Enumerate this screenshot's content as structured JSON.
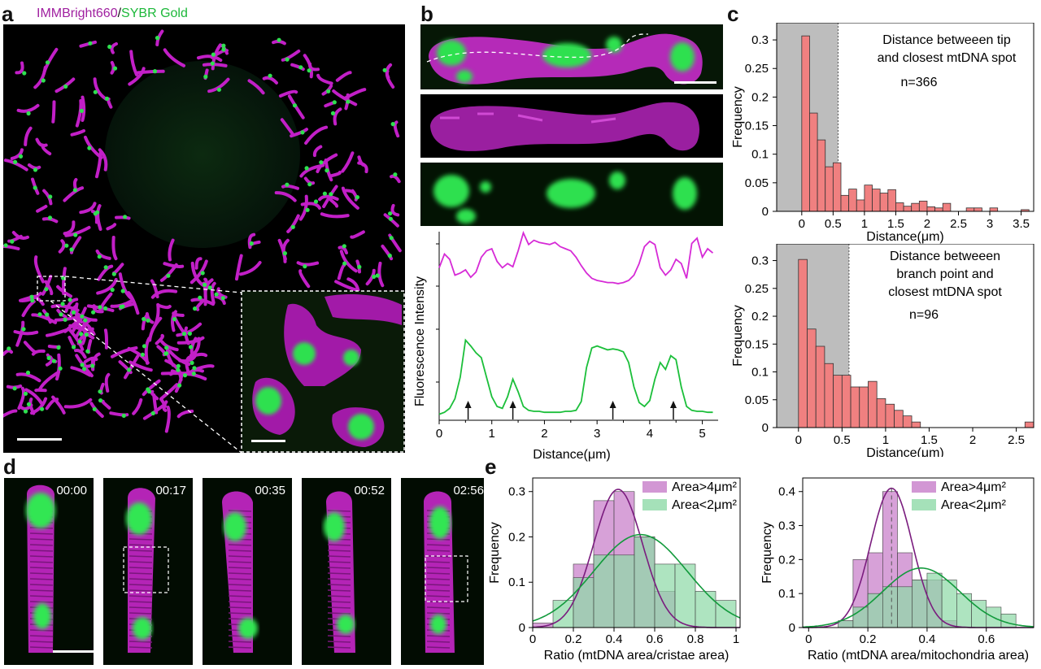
{
  "figure": {
    "panel_labels": {
      "a": "a",
      "b": "b",
      "c": "c",
      "d": "d",
      "e": "e"
    },
    "colors": {
      "magenta": "#d62ad6",
      "green": "#1bbf3a",
      "hist_red": "#f08080",
      "shade_gray": "#bdbdbd",
      "purple_fill": "#c77dc9",
      "green_fill": "#8fd9a8",
      "purple_line": "#7a1c7e",
      "green_line": "#129a3c"
    }
  },
  "panel_a": {
    "title_magenta": "IMMBright660",
    "title_sep": "/",
    "title_green": "SYBR Gold"
  },
  "panel_b": {
    "y_label": "Fluorescence Intensity",
    "x_label": "Distance(μm)"
  },
  "panel_d": {
    "timestamps": [
      "00:00",
      "00:17",
      "00:35",
      "00:52",
      "02:56"
    ]
  },
  "chart_data": [
    {
      "id": "b-profile",
      "type": "line",
      "title": "",
      "xlabel": "Distance(μm)",
      "ylabel": "Fluorescence Intensity",
      "xlim": [
        0,
        5.3
      ],
      "xticks": [
        "0",
        "1",
        "2",
        "3",
        "4",
        "5"
      ],
      "arrows_at": [
        0.55,
        1.4,
        3.3,
        4.45
      ],
      "series": [
        {
          "name": "magenta",
          "x": [
            0,
            0.1,
            0.2,
            0.3,
            0.4,
            0.5,
            0.6,
            0.7,
            0.8,
            0.9,
            1.0,
            1.1,
            1.2,
            1.3,
            1.4,
            1.5,
            1.6,
            1.7,
            1.8,
            1.9,
            2.0,
            2.1,
            2.2,
            2.3,
            2.4,
            2.5,
            2.6,
            2.7,
            2.8,
            2.9,
            3.0,
            3.1,
            3.2,
            3.3,
            3.4,
            3.5,
            3.6,
            3.7,
            3.8,
            3.9,
            4.0,
            4.1,
            4.2,
            4.3,
            4.4,
            4.5,
            4.6,
            4.7,
            4.8,
            4.9,
            5.0,
            5.1,
            5.2
          ],
          "y": [
            0.62,
            0.75,
            0.7,
            0.55,
            0.57,
            0.6,
            0.53,
            0.58,
            0.72,
            0.78,
            0.8,
            0.68,
            0.62,
            0.66,
            0.63,
            0.78,
            0.95,
            0.84,
            0.88,
            0.86,
            0.85,
            0.84,
            0.86,
            0.82,
            0.8,
            0.78,
            0.72,
            0.64,
            0.57,
            0.52,
            0.5,
            0.49,
            0.48,
            0.48,
            0.47,
            0.48,
            0.5,
            0.55,
            0.66,
            0.82,
            0.87,
            0.84,
            0.62,
            0.55,
            0.6,
            0.7,
            0.66,
            0.52,
            0.85,
            0.9,
            0.72,
            0.8,
            0.76
          ]
        },
        {
          "name": "green",
          "x": [
            0,
            0.1,
            0.2,
            0.3,
            0.4,
            0.5,
            0.6,
            0.7,
            0.8,
            0.9,
            1.0,
            1.1,
            1.2,
            1.3,
            1.4,
            1.5,
            1.6,
            1.7,
            1.8,
            1.9,
            2.0,
            2.1,
            2.2,
            2.3,
            2.4,
            2.5,
            2.6,
            2.7,
            2.8,
            2.9,
            3.0,
            3.1,
            3.2,
            3.3,
            3.4,
            3.5,
            3.6,
            3.7,
            3.8,
            3.9,
            4.0,
            4.1,
            4.2,
            4.3,
            4.4,
            4.5,
            4.6,
            4.7,
            4.8,
            4.9,
            5.0,
            5.1,
            5.2
          ],
          "y": [
            0.02,
            0.04,
            0.08,
            0.18,
            0.4,
            0.78,
            0.72,
            0.65,
            0.6,
            0.4,
            0.2,
            0.1,
            0.08,
            0.2,
            0.38,
            0.25,
            0.1,
            0.06,
            0.05,
            0.05,
            0.04,
            0.04,
            0.04,
            0.04,
            0.05,
            0.05,
            0.06,
            0.15,
            0.5,
            0.7,
            0.72,
            0.7,
            0.68,
            0.69,
            0.68,
            0.66,
            0.55,
            0.3,
            0.14,
            0.1,
            0.16,
            0.38,
            0.55,
            0.48,
            0.62,
            0.58,
            0.3,
            0.1,
            0.06,
            0.05,
            0.05,
            0.04,
            0.04
          ]
        }
      ]
    },
    {
      "id": "c-top",
      "type": "bar",
      "title": "",
      "annotation_lines": [
        "Distance betweeen tip",
        "and closest mtDNA spot"
      ],
      "n_label": "n=366",
      "xlabel": "Distance(μm)",
      "ylabel": "Frequency",
      "xlim": [
        -0.4,
        3.7
      ],
      "ylim": [
        0,
        0.33
      ],
      "xticks": [
        "0",
        "0.5",
        "1",
        "1.5",
        "2",
        "2.5",
        "3",
        "3.5"
      ],
      "yticks": [
        "0",
        "0.05",
        "0.1",
        "0.15",
        "0.2",
        "0.25",
        "0.3"
      ],
      "shaded_range": [
        -0.4,
        0.58
      ],
      "bin_width": 0.125,
      "bin_starts": [
        0,
        0.125,
        0.25,
        0.375,
        0.5,
        0.625,
        0.75,
        0.875,
        1.0,
        1.125,
        1.25,
        1.375,
        1.5,
        1.625,
        1.75,
        1.875,
        2.0,
        2.125,
        2.25,
        2.375,
        2.5,
        2.625,
        2.75,
        2.875,
        3.0,
        3.125,
        3.25,
        3.375,
        3.5
      ],
      "values": [
        0.307,
        0.172,
        0.125,
        0.078,
        0.085,
        0.028,
        0.039,
        0.02,
        0.046,
        0.039,
        0.032,
        0.038,
        0.015,
        0.009,
        0.014,
        0.018,
        0.008,
        0.006,
        0.014,
        0.0,
        0.0,
        0.006,
        0.006,
        0.0,
        0.006,
        0.0,
        0.0,
        0.0,
        0.003
      ]
    },
    {
      "id": "c-bottom",
      "type": "bar",
      "title": "",
      "annotation_lines": [
        "Distance betweeen",
        "branch point and",
        "closest mtDNA spot"
      ],
      "n_label": "n=96",
      "xlabel": "Distance(μm)",
      "ylabel": "Frequency",
      "xlim": [
        -0.25,
        2.7
      ],
      "ylim": [
        0,
        0.33
      ],
      "xticks": [
        "0",
        "0.5",
        "1",
        "1.5",
        "2",
        "2.5"
      ],
      "yticks": [
        "0",
        "0.05",
        "0.1",
        "0.15",
        "0.2",
        "0.25",
        "0.3"
      ],
      "shaded_range": [
        -0.25,
        0.58
      ],
      "bin_width": 0.1,
      "bin_starts": [
        0,
        0.1,
        0.2,
        0.3,
        0.4,
        0.5,
        0.6,
        0.7,
        0.8,
        0.9,
        1.0,
        1.1,
        1.2,
        1.3,
        1.4,
        1.5,
        1.6,
        1.7,
        1.8,
        1.9,
        2.0,
        2.1,
        2.2,
        2.3,
        2.4,
        2.5,
        2.6
      ],
      "values": [
        0.302,
        0.177,
        0.146,
        0.115,
        0.094,
        0.094,
        0.073,
        0.073,
        0.083,
        0.052,
        0.042,
        0.031,
        0.021,
        0.01,
        0.0,
        0.0,
        0.0,
        0.0,
        0.0,
        0.0,
        0.0,
        0.0,
        0.0,
        0.0,
        0.0,
        0.0,
        0.01
      ]
    },
    {
      "id": "e-left",
      "type": "bar",
      "title": "",
      "xlabel": "Ratio (mtDNA area/cristae area)",
      "ylabel": "Frequency",
      "xlim": [
        0,
        1.02
      ],
      "ylim": [
        0,
        0.33
      ],
      "xticks": [
        "0",
        "0.2",
        "0.4",
        "0.6",
        "0.8",
        "1"
      ],
      "yticks": [
        "0",
        "0.1",
        "0.2",
        "0.3"
      ],
      "legend": [
        "Area>4μm²",
        "Area<2μm²"
      ],
      "bin_width": 0.1,
      "bin_starts": [
        0,
        0.1,
        0.2,
        0.3,
        0.4,
        0.5,
        0.6,
        0.7,
        0.8,
        0.9
      ],
      "series": [
        {
          "name": "Area>4μm²",
          "values": [
            0.01,
            0.0,
            0.14,
            0.28,
            0.3,
            0.2,
            0.08,
            0.0,
            0.0,
            0.0
          ],
          "fit_mean": 0.42,
          "fit_sd": 0.12,
          "fit_peak": 0.305
        },
        {
          "name": "Area<2μm²",
          "values": [
            0.0,
            0.06,
            0.11,
            0.16,
            0.16,
            0.2,
            0.14,
            0.14,
            0.08,
            0.06
          ],
          "fit_mean": 0.53,
          "fit_sd": 0.23,
          "fit_peak": 0.205
        }
      ]
    },
    {
      "id": "e-right",
      "type": "bar",
      "title": "",
      "xlabel": "Ratio (mtDNA area/mitochondria area)",
      "ylabel": "Frequency",
      "xlim": [
        -0.02,
        0.76
      ],
      "ylim": [
        0,
        0.44
      ],
      "xticks": [
        "0",
        "0.2",
        "0.4",
        "0.6"
      ],
      "yticks": [
        "0",
        "0.1",
        "0.2",
        "0.3",
        "0.4"
      ],
      "legend": [
        "Area>4μm²",
        "Area<2μm²"
      ],
      "dashed_x": 0.28,
      "bin_width": 0.05,
      "bin_starts": [
        0.0,
        0.05,
        0.1,
        0.15,
        0.2,
        0.25,
        0.3,
        0.35,
        0.4,
        0.45,
        0.5,
        0.55,
        0.6,
        0.65
      ],
      "series": [
        {
          "name": "Area>4μm²",
          "values": [
            0.0,
            0.0,
            0.02,
            0.2,
            0.22,
            0.4,
            0.22,
            0.14,
            0.14,
            0.02,
            0.0,
            0.0,
            0.0,
            0.0
          ],
          "fit_mean": 0.28,
          "fit_sd": 0.07,
          "fit_peak": 0.41
        },
        {
          "name": "Area<2μm²",
          "values": [
            0.0,
            0.0,
            0.02,
            0.06,
            0.1,
            0.12,
            0.12,
            0.14,
            0.16,
            0.14,
            0.1,
            0.08,
            0.06,
            0.04
          ],
          "fit_mean": 0.38,
          "fit_sd": 0.13,
          "fit_peak": 0.175
        }
      ]
    }
  ]
}
